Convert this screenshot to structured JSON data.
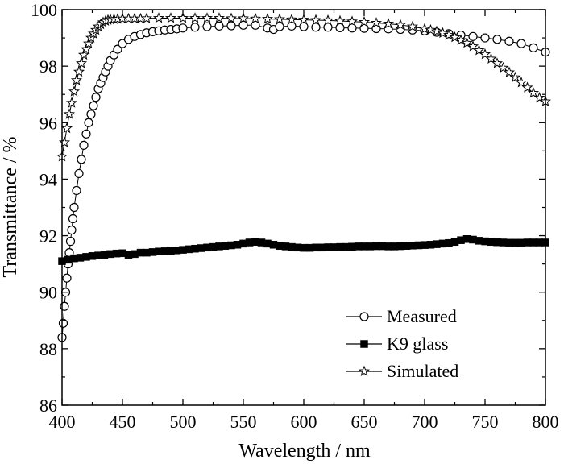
{
  "chart_data": {
    "type": "line",
    "xlabel": "Wavelength / nm",
    "ylabel": "Transmittance / %",
    "xlim": [
      400,
      800
    ],
    "ylim": [
      86,
      100
    ],
    "x_ticks": [
      400,
      450,
      500,
      550,
      600,
      650,
      700,
      750,
      800
    ],
    "y_ticks": [
      86,
      88,
      90,
      92,
      94,
      96,
      98,
      100
    ],
    "grid": false,
    "legend_position": "bottom-right",
    "series": [
      {
        "name": "Measured",
        "marker": "open-circle",
        "x": [
          400,
          401,
          402,
          403,
          404,
          405,
          406,
          407,
          408,
          409,
          410,
          412,
          414,
          416,
          418,
          420,
          422,
          424,
          426,
          428,
          430,
          432,
          434,
          436,
          438,
          440,
          443,
          446,
          450,
          455,
          460,
          465,
          470,
          475,
          480,
          485,
          490,
          495,
          500,
          510,
          520,
          530,
          540,
          550,
          560,
          570,
          575,
          580,
          590,
          600,
          610,
          620,
          630,
          640,
          650,
          660,
          670,
          680,
          690,
          700,
          710,
          720,
          730,
          740,
          750,
          760,
          770,
          780,
          790,
          800
        ],
        "y": [
          88.4,
          88.9,
          89.5,
          90.0,
          90.5,
          91.0,
          91.4,
          91.8,
          92.2,
          92.6,
          93.0,
          93.6,
          94.2,
          94.7,
          95.2,
          95.6,
          96.0,
          96.3,
          96.6,
          96.9,
          97.2,
          97.4,
          97.6,
          97.8,
          98.0,
          98.2,
          98.4,
          98.6,
          98.8,
          98.95,
          99.05,
          99.12,
          99.18,
          99.22,
          99.25,
          99.28,
          99.3,
          99.32,
          99.35,
          99.38,
          99.4,
          99.42,
          99.43,
          99.45,
          99.45,
          99.35,
          99.3,
          99.4,
          99.42,
          99.4,
          99.38,
          99.38,
          99.36,
          99.35,
          99.34,
          99.33,
          99.32,
          99.3,
          99.28,
          99.25,
          99.2,
          99.15,
          99.1,
          99.05,
          99.0,
          98.95,
          98.88,
          98.8,
          98.65,
          98.5
        ]
      },
      {
        "name": "K9 glass",
        "marker": "filled-square",
        "x": [
          400,
          405,
          410,
          415,
          420,
          425,
          430,
          435,
          440,
          445,
          450,
          455,
          460,
          465,
          470,
          475,
          480,
          485,
          490,
          495,
          500,
          505,
          510,
          515,
          520,
          525,
          530,
          535,
          540,
          545,
          550,
          555,
          560,
          565,
          570,
          575,
          580,
          585,
          590,
          595,
          600,
          605,
          610,
          615,
          620,
          625,
          630,
          635,
          640,
          645,
          650,
          655,
          660,
          665,
          670,
          675,
          680,
          685,
          690,
          695,
          700,
          705,
          710,
          715,
          720,
          725,
          730,
          735,
          740,
          745,
          750,
          755,
          760,
          765,
          770,
          775,
          780,
          785,
          790,
          795,
          800
        ],
        "y": [
          91.1,
          91.15,
          91.2,
          91.22,
          91.25,
          91.28,
          91.3,
          91.32,
          91.35,
          91.37,
          91.38,
          91.32,
          91.35,
          91.4,
          91.4,
          91.42,
          91.44,
          91.45,
          91.46,
          91.48,
          91.5,
          91.52,
          91.54,
          91.56,
          91.58,
          91.6,
          91.62,
          91.64,
          91.66,
          91.68,
          91.72,
          91.76,
          91.78,
          91.76,
          91.72,
          91.68,
          91.64,
          91.62,
          91.6,
          91.58,
          91.57,
          91.57,
          91.58,
          91.58,
          91.59,
          91.59,
          91.6,
          91.6,
          91.61,
          91.62,
          91.62,
          91.62,
          91.63,
          91.63,
          91.62,
          91.62,
          91.63,
          91.64,
          91.65,
          91.66,
          91.67,
          91.68,
          91.7,
          91.72,
          91.74,
          91.78,
          91.84,
          91.88,
          91.86,
          91.82,
          91.8,
          91.78,
          91.77,
          91.76,
          91.75,
          91.75,
          91.75,
          91.76,
          91.76,
          91.76,
          91.76
        ]
      },
      {
        "name": "Simulated",
        "marker": "open-star",
        "x": [
          400,
          402,
          404,
          406,
          408,
          410,
          412,
          414,
          416,
          418,
          420,
          422,
          424,
          426,
          428,
          430,
          432,
          434,
          436,
          438,
          440,
          443,
          446,
          450,
          455,
          460,
          465,
          470,
          480,
          490,
          500,
          510,
          520,
          530,
          540,
          550,
          560,
          570,
          580,
          590,
          600,
          610,
          620,
          630,
          640,
          650,
          660,
          670,
          680,
          690,
          700,
          705,
          710,
          715,
          720,
          725,
          730,
          735,
          740,
          745,
          750,
          755,
          760,
          765,
          770,
          775,
          780,
          785,
          790,
          795,
          800
        ],
        "y": [
          94.8,
          95.3,
          95.8,
          96.3,
          96.7,
          97.1,
          97.5,
          97.8,
          98.1,
          98.4,
          98.6,
          98.8,
          99.0,
          99.15,
          99.28,
          99.4,
          99.48,
          99.55,
          99.6,
          99.63,
          99.65,
          99.66,
          99.67,
          99.68,
          99.68,
          99.68,
          99.68,
          99.69,
          99.7,
          99.7,
          99.7,
          99.7,
          99.7,
          99.7,
          99.69,
          99.69,
          99.68,
          99.67,
          99.66,
          99.65,
          99.64,
          99.63,
          99.62,
          99.6,
          99.58,
          99.56,
          99.53,
          99.5,
          99.46,
          99.4,
          99.32,
          99.28,
          99.23,
          99.17,
          99.1,
          99.02,
          98.92,
          98.82,
          98.7,
          98.56,
          98.42,
          98.26,
          98.1,
          97.94,
          97.78,
          97.6,
          97.42,
          97.24,
          97.05,
          96.88,
          96.75
        ]
      }
    ]
  }
}
